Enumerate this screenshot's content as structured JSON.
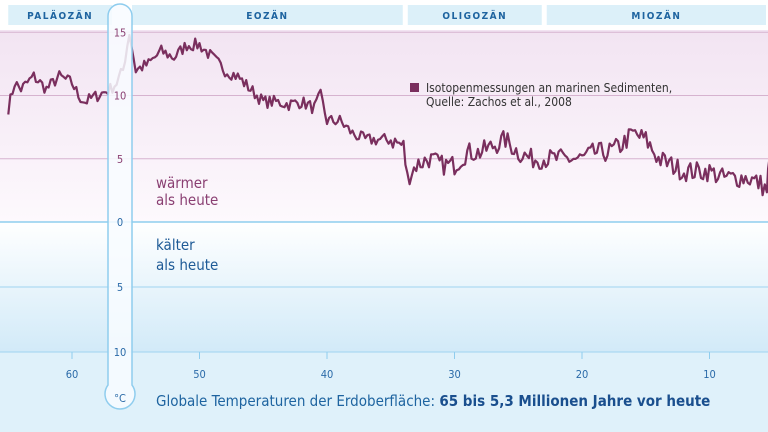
{
  "chart_data": {
    "type": "line",
    "title": "Globale Temperaturen der Erdoberfläche:",
    "title_bold": "65 bis 5,3 Millionen Jahre vor heute",
    "unit": "°C",
    "xlim": [
      65,
      5.3
    ],
    "x_ticks": [
      60,
      50,
      40,
      30,
      20,
      10
    ],
    "y_ticks_warm": [
      15,
      10,
      5,
      0
    ],
    "y_ticks_cold": [
      5,
      10
    ],
    "ylim": [
      -10,
      15
    ],
    "grid": true,
    "epochs": [
      {
        "name": "PALÄOZÄN",
        "from": 65,
        "to": 56
      },
      {
        "name": "EOZÄN",
        "from": 56,
        "to": 33.9
      },
      {
        "name": "OLIGOZÄN",
        "from": 33.9,
        "to": 23
      },
      {
        "name": "MIOZÄN",
        "from": 23,
        "to": 5.3
      }
    ],
    "warm_label": [
      "wärmer",
      "als heute"
    ],
    "cold_label": [
      "kälter",
      "als heute"
    ],
    "legend": {
      "lines": [
        "Isotopenmessungen an marinen Sedimenten,",
        "Quelle: Zachos et al., 2008"
      ],
      "placement": "top-right"
    },
    "colors": {
      "series": "#7a2f5e",
      "warm": "#8a3f72",
      "cold": "#1e5a96",
      "band": "#dcf0f9"
    },
    "series": [
      {
        "x": [
          65,
          64.5,
          64,
          63,
          62,
          61,
          60,
          59.5,
          59,
          58,
          57,
          56.5,
          56,
          55.5,
          55,
          54,
          53,
          52,
          51,
          50,
          49,
          48,
          47,
          46,
          45,
          44,
          43,
          42,
          41,
          40.5,
          40,
          39,
          38,
          37,
          36,
          35,
          34,
          33.7,
          33,
          32,
          31,
          30,
          29,
          28,
          27,
          26,
          25,
          24,
          23,
          22,
          21,
          20,
          19,
          18,
          17,
          16,
          15,
          14,
          13,
          12,
          11,
          10,
          9,
          8,
          7,
          6,
          5.5,
          5.3
        ],
        "y": [
          9,
          11,
          10.5,
          11.5,
          10.5,
          11.5,
          11,
          10,
          9.5,
          10,
          10.5,
          11,
          12,
          15,
          12,
          12.5,
          13.5,
          13,
          14,
          14,
          13,
          12,
          11.5,
          10.5,
          9.5,
          9.5,
          9.3,
          9.5,
          9,
          10,
          8,
          8,
          7,
          6.5,
          6.5,
          6.5,
          6,
          3.5,
          4.5,
          5,
          4.5,
          4.5,
          5.5,
          5.5,
          6,
          6.5,
          5.5,
          5,
          5,
          5,
          5,
          5,
          5.5,
          5.5,
          6,
          7,
          6.5,
          5,
          4.5,
          4,
          4,
          4,
          3.5,
          3.5,
          3.5,
          3,
          2.5,
          5
        ]
      }
    ]
  }
}
